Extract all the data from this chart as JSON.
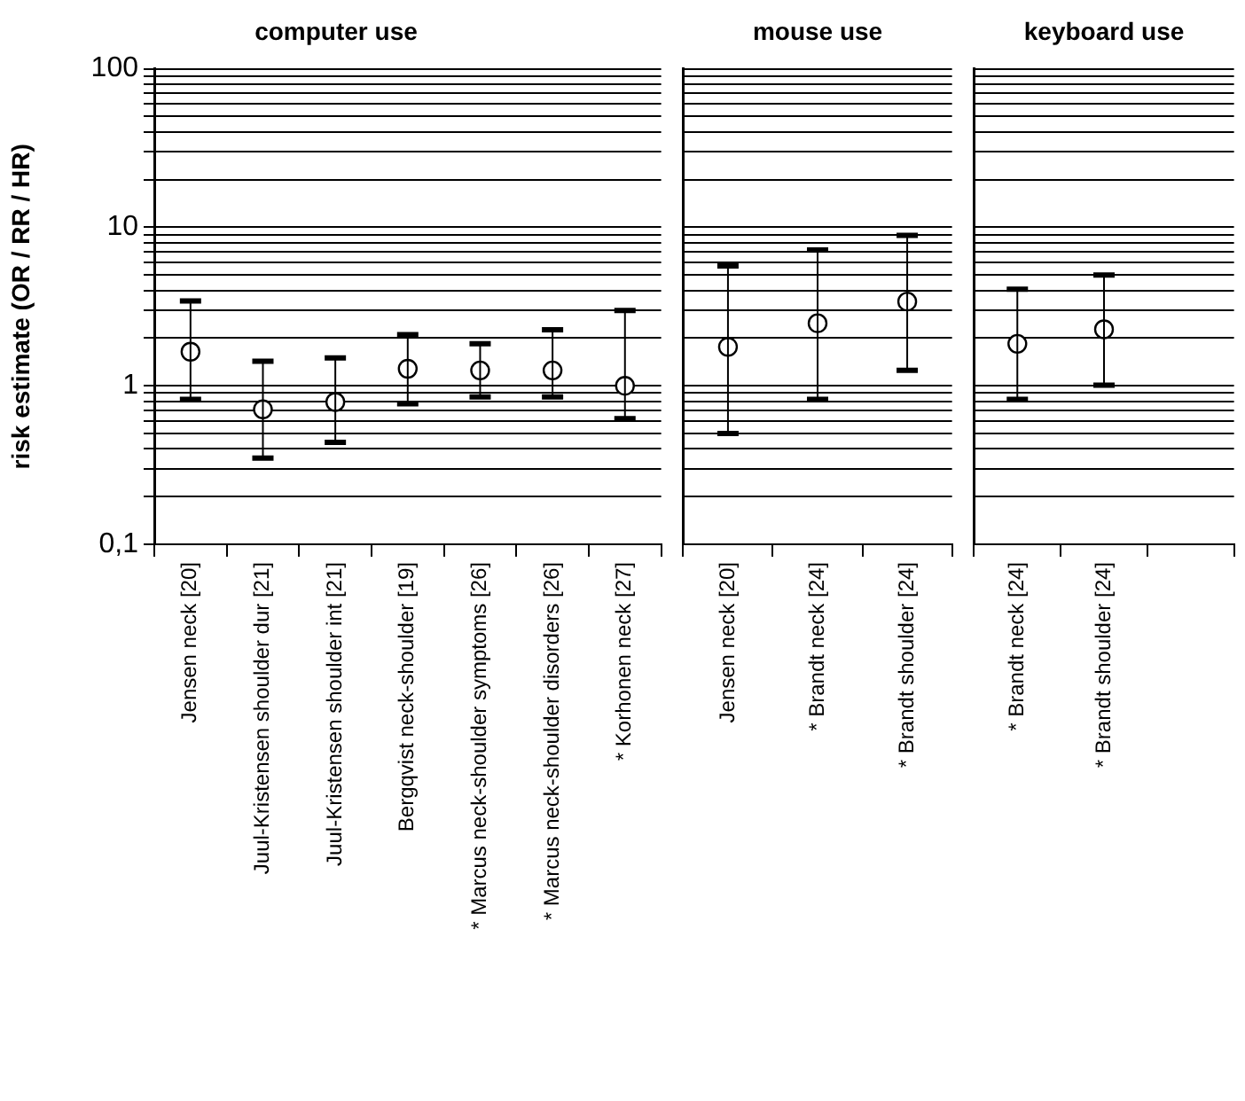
{
  "chart_data": [
    {
      "type": "scatter",
      "title": "computer use",
      "ylabel": "risk estimate (OR / RR / HR)",
      "categories": [
        "Jensen neck [20]",
        "Juul-Kristensen shoulder dur [21]",
        "Juul-Kristensen shoulder int [21]",
        "Bergqvist neck-shoulder [19]",
        "* Marcus neck-shoulder symptoms [26]",
        "* Marcus neck-shoulder disorders [26]",
        "* Korhonen neck [27]"
      ],
      "values": [
        1.64,
        0.71,
        0.79,
        1.28,
        1.25,
        1.25,
        1.0
      ],
      "errors": [
        [
          0.82,
          3.43
        ],
        [
          0.35,
          1.43
        ],
        [
          0.44,
          1.5
        ],
        [
          0.77,
          2.1
        ],
        [
          0.85,
          1.84
        ],
        [
          0.85,
          2.26
        ],
        [
          0.62,
          2.99
        ]
      ],
      "color": "#000000",
      "marker": "circle",
      "log": true,
      "grid": "y",
      "ylim": [
        0.1,
        100
      ],
      "yticks": [
        {
          "value": 0.1,
          "label": "0,1"
        },
        {
          "value": 0.2,
          "label": null
        },
        {
          "value": 0.3,
          "label": null
        },
        {
          "value": 0.4,
          "label": null
        },
        {
          "value": 0.5,
          "label": null
        },
        {
          "value": 0.6,
          "label": null
        },
        {
          "value": 0.7,
          "label": null
        },
        {
          "value": 0.8,
          "label": null
        },
        {
          "value": 0.9,
          "label": null
        },
        1,
        {
          "value": 2,
          "label": null
        },
        {
          "value": 3,
          "label": null
        },
        {
          "value": 4,
          "label": null
        },
        {
          "value": 5,
          "label": null
        },
        {
          "value": 6,
          "label": null
        },
        {
          "value": 7,
          "label": null
        },
        {
          "value": 8,
          "label": null
        },
        {
          "value": 9,
          "label": null
        },
        10,
        {
          "value": 20,
          "label": null
        },
        {
          "value": 30,
          "label": null
        },
        {
          "value": 40,
          "label": null
        },
        {
          "value": 50,
          "label": null
        },
        {
          "value": 60,
          "label": null
        },
        {
          "value": 70,
          "label": null
        },
        {
          "value": 80,
          "label": null
        },
        {
          "value": 90,
          "label": null
        },
        100
      ]
    },
    {
      "type": "scatter",
      "title": "mouse use",
      "categories": [
        "Jensen neck [20]",
        "* Brandt neck [24]",
        "* Brandt shoulder [24]"
      ],
      "values": [
        1.76,
        2.48,
        3.4
      ],
      "errors": [
        [
          0.5,
          5.7
        ],
        [
          0.82,
          7.2
        ],
        [
          1.25,
          8.9
        ]
      ],
      "color": "#000000",
      "marker": "circle",
      "log": true,
      "grid": "y",
      "tick_labels": "x",
      "ylim": [
        0.1,
        100
      ],
      "yticks": [
        {
          "value": 0.1,
          "label": null
        },
        {
          "value": 0.2,
          "label": null
        },
        {
          "value": 0.3,
          "label": null
        },
        {
          "value": 0.4,
          "label": null
        },
        {
          "value": 0.5,
          "label": null
        },
        {
          "value": 0.6,
          "label": null
        },
        {
          "value": 0.7,
          "label": null
        },
        {
          "value": 0.8,
          "label": null
        },
        {
          "value": 0.9,
          "label": null
        },
        {
          "value": 1,
          "label": null
        },
        {
          "value": 2,
          "label": null
        },
        {
          "value": 3,
          "label": null
        },
        {
          "value": 4,
          "label": null
        },
        {
          "value": 5,
          "label": null
        },
        {
          "value": 6,
          "label": null
        },
        {
          "value": 7,
          "label": null
        },
        {
          "value": 8,
          "label": null
        },
        {
          "value": 9,
          "label": null
        },
        {
          "value": 10,
          "label": null
        },
        {
          "value": 20,
          "label": null
        },
        {
          "value": 30,
          "label": null
        },
        {
          "value": 40,
          "label": null
        },
        {
          "value": 50,
          "label": null
        },
        {
          "value": 60,
          "label": null
        },
        {
          "value": 70,
          "label": null
        },
        {
          "value": 80,
          "label": null
        },
        {
          "value": 90,
          "label": null
        },
        {
          "value": 100,
          "label": null
        }
      ]
    },
    {
      "type": "scatter",
      "title": "keyboard use",
      "categories": [
        "* Brandt neck [24]",
        "* Brandt shoulder [24]",
        null
      ],
      "values": [
        1.84,
        2.27,
        null
      ],
      "errors": [
        [
          0.82,
          4.07
        ],
        [
          1.01,
          5.0
        ],
        null
      ],
      "color": "#000000",
      "marker": "circle",
      "log": true,
      "grid": "y",
      "tick_labels": "x",
      "ylim": [
        0.1,
        100
      ],
      "yticks": [
        {
          "value": 0.1,
          "label": null
        },
        {
          "value": 0.2,
          "label": null
        },
        {
          "value": 0.3,
          "label": null
        },
        {
          "value": 0.4,
          "label": null
        },
        {
          "value": 0.5,
          "label": null
        },
        {
          "value": 0.6,
          "label": null
        },
        {
          "value": 0.7,
          "label": null
        },
        {
          "value": 0.8,
          "label": null
        },
        {
          "value": 0.9,
          "label": null
        },
        {
          "value": 1,
          "label": null
        },
        {
          "value": 2,
          "label": null
        },
        {
          "value": 3,
          "label": null
        },
        {
          "value": 4,
          "label": null
        },
        {
          "value": 5,
          "label": null
        },
        {
          "value": 6,
          "label": null
        },
        {
          "value": 7,
          "label": null
        },
        {
          "value": 8,
          "label": null
        },
        {
          "value": 9,
          "label": null
        },
        {
          "value": 10,
          "label": null
        },
        {
          "value": 20,
          "label": null
        },
        {
          "value": 30,
          "label": null
        },
        {
          "value": 40,
          "label": null
        },
        {
          "value": 50,
          "label": null
        },
        {
          "value": 60,
          "label": null
        },
        {
          "value": 70,
          "label": null
        },
        {
          "value": 80,
          "label": null
        },
        {
          "value": 90,
          "label": null
        },
        {
          "value": 100,
          "label": null
        }
      ]
    }
  ]
}
